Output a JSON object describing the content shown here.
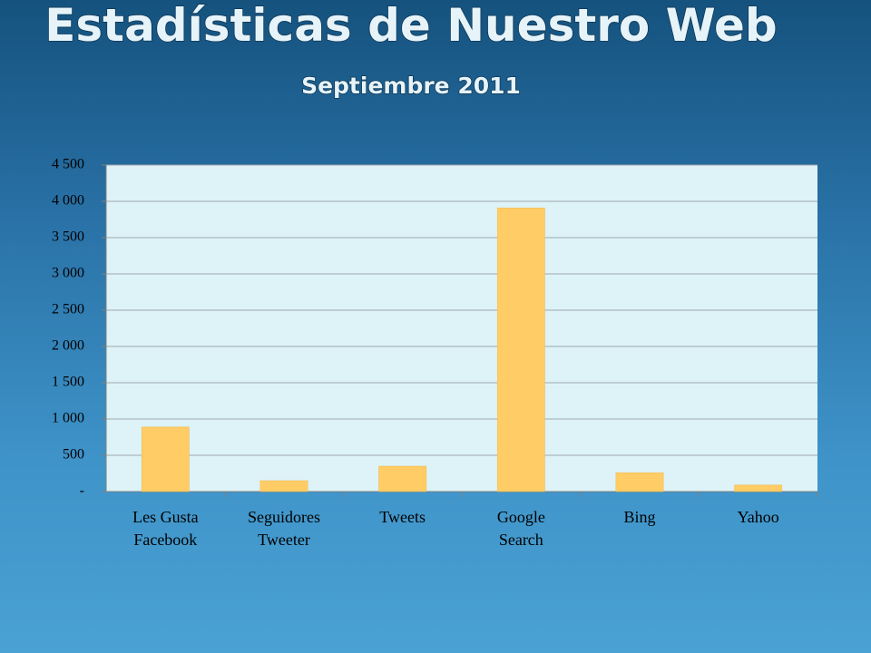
{
  "chart_data": {
    "type": "bar",
    "title": "Estadísticas de Nuestro Web",
    "subtitle": "Septiembre 2011",
    "categories": [
      "Les Gusta Facebook",
      "Seguidores Tweeter",
      "Tweets",
      "Google Search",
      "Bing",
      "Yahoo"
    ],
    "values": [
      890,
      150,
      350,
      3910,
      260,
      90
    ],
    "color": "#ffcc66",
    "ylim": [
      0,
      4500
    ],
    "yticks": [
      {
        "value": 0,
        "label": "-"
      },
      500,
      {
        "value": 1000,
        "label": "1 000"
      },
      {
        "value": 1500,
        "label": "1 500"
      },
      {
        "value": 2000,
        "label": "2 000"
      },
      {
        "value": 2500,
        "label": "2 500"
      },
      {
        "value": 3000,
        "label": "3 000"
      },
      {
        "value": 3500,
        "label": "3 500"
      },
      {
        "value": 4000,
        "label": "4 000"
      },
      {
        "value": 4500,
        "label": "4 500"
      }
    ],
    "grid": true
  }
}
